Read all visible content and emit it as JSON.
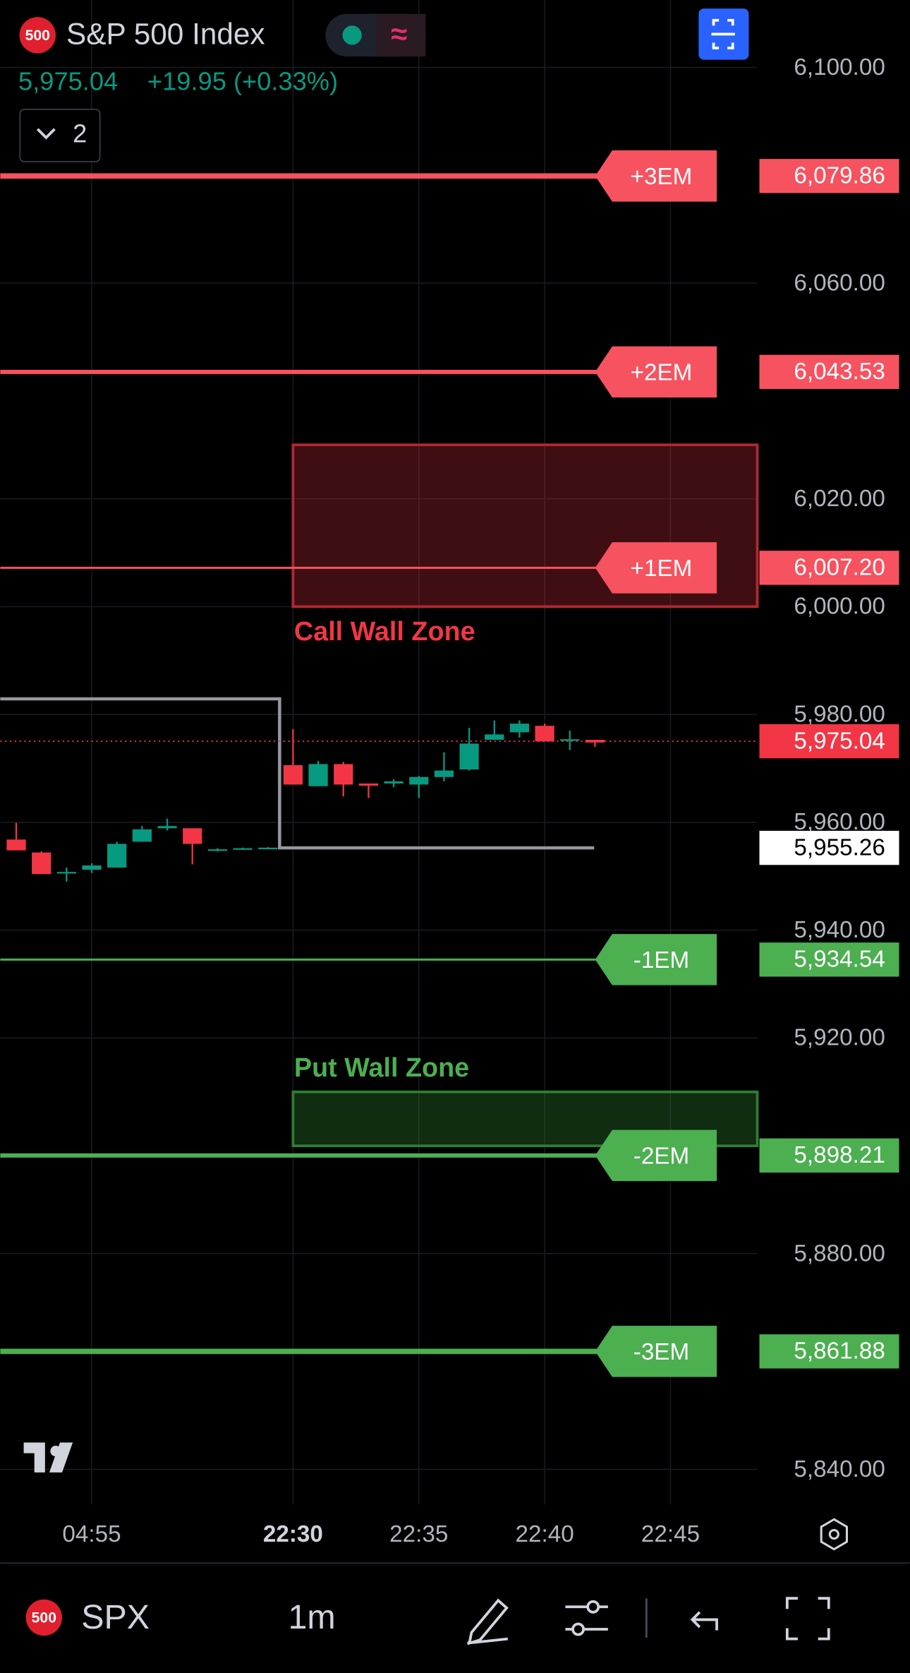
{
  "header": {
    "badge": "500",
    "symbol": "S&P 500 Index",
    "price": "5,975.04",
    "change": "+19.95 (+0.33%)",
    "indicators_count": "2"
  },
  "chart_data": {
    "type": "candlestick",
    "categories": [
      null,
      null,
      null,
      "04:55",
      null,
      null,
      null,
      null,
      null,
      null,
      null,
      "22:30",
      null,
      null,
      null,
      null,
      "22:35",
      null,
      null,
      null,
      null,
      "22:40",
      null,
      null,
      null,
      null,
      "22:45"
    ],
    "open": [
      5956.8,
      5954.4,
      5950.5,
      5951.2,
      5951.6,
      5956.4,
      5958.9,
      5958.9,
      5954.8,
      5955.0,
      5955.2,
      5970.6,
      5966.7,
      5970.8,
      5967.2,
      5967.2,
      5967.0,
      5968.4,
      5969.8,
      5975.3,
      5976.7,
      5977.9,
      5975.2,
      5975.3,
      null,
      null,
      null
    ],
    "high": [
      5959.9,
      5954.6,
      5951.6,
      5952.4,
      5956.4,
      5959.3,
      5960.7,
      5958.9,
      5955.2,
      5955.3,
      5955.4,
      5977.3,
      5971.4,
      5971.2,
      5967.2,
      5968.0,
      5968.6,
      5973.0,
      5977.5,
      5978.9,
      5978.9,
      5978.3,
      5977.0,
      5975.3,
      null,
      null,
      null
    ],
    "low": [
      5954.8,
      5950.4,
      5949.0,
      5950.6,
      5951.6,
      5956.4,
      5958.5,
      5952.2,
      5954.6,
      5954.9,
      5955.1,
      5967.0,
      5966.7,
      5964.8,
      5964.5,
      5966.5,
      5964.5,
      5967.6,
      5969.6,
      5975.3,
      5975.7,
      5975.0,
      5973.4,
      5974.0,
      null,
      null,
      null
    ],
    "close": [
      5954.8,
      5950.4,
      5950.8,
      5952.0,
      5956.0,
      5958.7,
      5959.3,
      5956.0,
      5955.0,
      5955.2,
      5955.3,
      5967.0,
      5970.8,
      5967.0,
      5966.8,
      5967.6,
      5968.4,
      5969.6,
      5974.6,
      5976.3,
      5978.3,
      5975.0,
      5975.4,
      5974.8,
      null,
      null,
      null
    ],
    "up_color": "#089981",
    "down_color": "#f23645",
    "ylim": [
      5833.5,
      6112.5
    ],
    "yticks": [
      {
        "value": 6100,
        "label": "6,100.00"
      },
      {
        "value": 6060,
        "label": "6,060.00"
      },
      {
        "value": 6020,
        "label": "6,020.00"
      },
      {
        "value": 6000,
        "label": "6,000.00"
      },
      {
        "value": 5980,
        "label": "5,980.00"
      },
      {
        "value": 5960,
        "label": "5,960.00"
      },
      {
        "value": 5940,
        "label": "5,940.00"
      },
      {
        "value": 5920,
        "label": "5,920.00"
      },
      {
        "value": 5880,
        "label": "5,880.00"
      },
      {
        "value": 5840,
        "label": "5,840.00"
      }
    ],
    "grid": true,
    "levels": [
      {
        "name": "+3EM",
        "value": 6079.86,
        "label": "6,079.86",
        "color": "#f7525f"
      },
      {
        "name": "+2EM",
        "value": 6043.53,
        "label": "6,043.53",
        "color": "#f7525f"
      },
      {
        "name": "+1EM",
        "value": 6007.2,
        "label": "6,007.20",
        "color": "#f7525f"
      },
      {
        "name": "-1EM",
        "value": 5934.54,
        "label": "5,934.54",
        "color": "#4caf50"
      },
      {
        "name": "-2EM",
        "value": 5898.21,
        "label": "5,898.21",
        "color": "#4caf50"
      },
      {
        "name": "-3EM",
        "value": 5861.88,
        "label": "5,861.88",
        "color": "#4caf50"
      }
    ],
    "zones": [
      {
        "name": "Call Wall Zone",
        "low": 6000,
        "high": 6030,
        "color": "#b22833"
      },
      {
        "name": "Put Wall Zone",
        "low": 5900,
        "high": 5910,
        "color": "#2e7d32"
      }
    ],
    "last_price": {
      "value": 5975.04,
      "label": "5,975.04",
      "color": "#f23645"
    },
    "session_box": {
      "high": 5982.9,
      "close": {
        "value": 5955.26,
        "label": "5,955.26"
      }
    }
  },
  "toolbar": {
    "badge": "500",
    "symbol": "SPX",
    "interval": "1m"
  }
}
